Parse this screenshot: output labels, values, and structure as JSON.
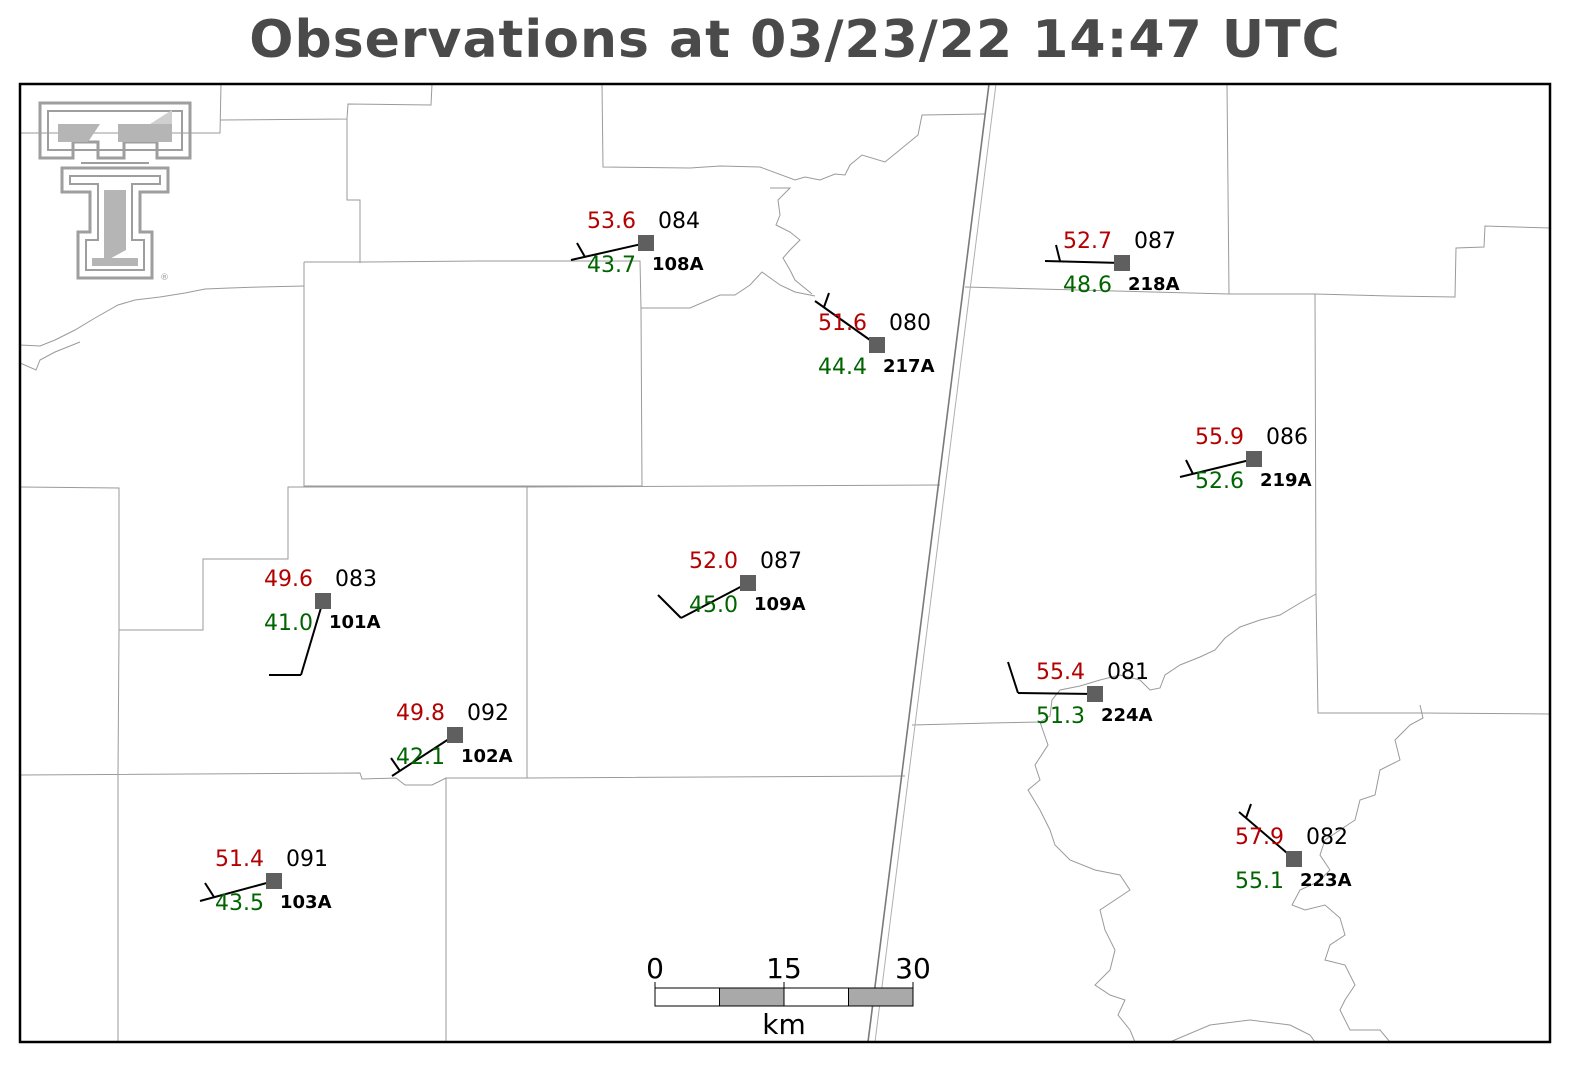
{
  "title": "Observations at 03/23/22 14:47 UTC",
  "colors": {
    "temperature": "#b30000",
    "dewpoint": "#006400",
    "pressure": "#000000",
    "station_marker": "#5f5f5f",
    "logo": "#9e9e9e"
  },
  "logo": {
    "icon": "texas-tech-double-t-logo",
    "mark": "®"
  },
  "stations": [
    {
      "id": "108A",
      "temp": "53.6",
      "dew": "43.7",
      "pres": "084"
    },
    {
      "id": "217A",
      "temp": "51.6",
      "dew": "44.4",
      "pres": "080"
    },
    {
      "id": "218A",
      "temp": "52.7",
      "dew": "48.6",
      "pres": "087"
    },
    {
      "id": "219A",
      "temp": "55.9",
      "dew": "52.6",
      "pres": "086"
    },
    {
      "id": "109A",
      "temp": "52.0",
      "dew": "45.0",
      "pres": "087"
    },
    {
      "id": "101A",
      "temp": "49.6",
      "dew": "41.0",
      "pres": "083"
    },
    {
      "id": "102A",
      "temp": "49.8",
      "dew": "42.1",
      "pres": "092"
    },
    {
      "id": "103A",
      "temp": "51.4",
      "dew": "43.5",
      "pres": "091"
    },
    {
      "id": "224A",
      "temp": "55.4",
      "dew": "51.3",
      "pres": "081"
    },
    {
      "id": "223A",
      "temp": "57.9",
      "dew": "55.1",
      "pres": "082"
    }
  ],
  "scale_bar": {
    "labels": [
      "0",
      "15",
      "30"
    ],
    "unit": "km"
  }
}
